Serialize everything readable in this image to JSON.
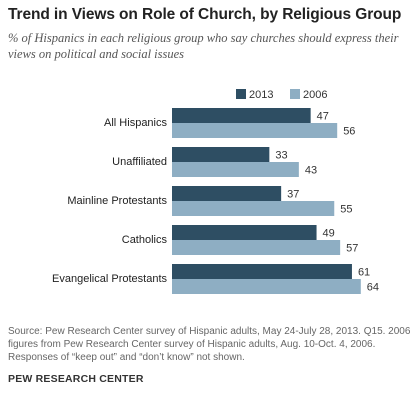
{
  "header": {
    "title": "Trend in Views on Role of Church, by Religious Group",
    "subtitle": "% of Hispanics in each religious group who say churches should express their views on political and social issues"
  },
  "footer": {
    "source_line1": "Source: Pew Research Center survey of Hispanic adults, May 24-July 28, 2013. Q15. 2006 figures from Pew Research Center survey of Hispanic adults, Aug. 10-Oct. 4, 2006.",
    "source_line2": "Responses of “keep out” and “don’t know” not shown.",
    "brand": "PEW RESEARCH CENTER"
  },
  "chart_data": {
    "type": "bar",
    "orientation": "horizontal",
    "categories": [
      "All Hispanics",
      "Unaffiliated",
      "Mainline Protestants",
      "Catholics",
      "Evangelical Protestants"
    ],
    "series": [
      {
        "name": "2013",
        "values": [
          47,
          33,
          37,
          49,
          61
        ],
        "color": "#2e4e63"
      },
      {
        "name": "2006",
        "values": [
          56,
          43,
          55,
          57,
          64
        ],
        "color": "#8eaec3"
      }
    ],
    "title": "Trend in Views on Role of Church, by Religious Group",
    "xlabel": "",
    "ylabel": "",
    "xlim": [
      0,
      64
    ],
    "grid": false,
    "legend": "top"
  }
}
